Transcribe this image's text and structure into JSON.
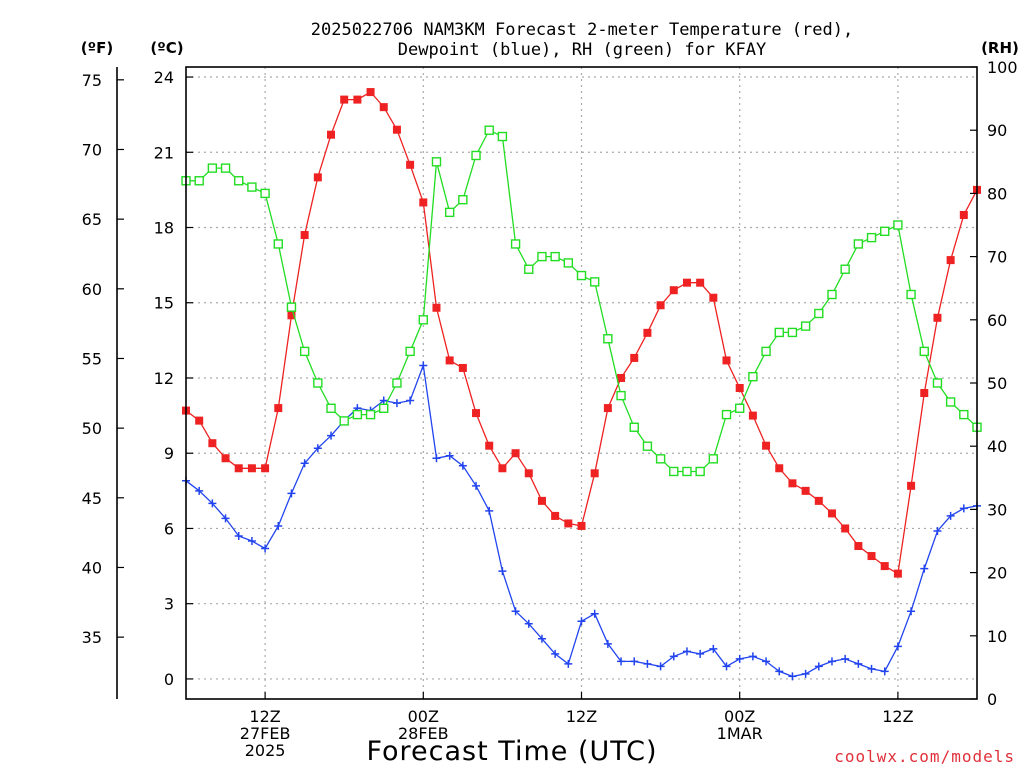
{
  "chart_data": {
    "type": "line",
    "title_line1": "2025022706 NAM3KM Forecast 2-meter Temperature (red),",
    "title_line2": "Dewpoint (blue), RH (green) for KFAY",
    "xlabel": "Forecast Time (UTC)",
    "credit": "coolwx.com/models",
    "units": {
      "fahrenheit": "(ºF)",
      "celsius": "(ºC)",
      "rh": "(RH)"
    },
    "x_range_hours": [
      7,
      67
    ],
    "celsius_axis": {
      "range": [
        -0.8,
        24.4
      ],
      "ticks": [
        0,
        3,
        6,
        9,
        12,
        15,
        18,
        21,
        24
      ]
    },
    "fahrenheit_axis": {
      "ticks": [
        35,
        40,
        45,
        50,
        55,
        60,
        65,
        70,
        75
      ]
    },
    "rh_axis": {
      "range": [
        0,
        100
      ],
      "ticks": [
        0,
        10,
        20,
        30,
        40,
        50,
        60,
        70,
        80,
        90,
        100
      ]
    },
    "x_ticks": [
      {
        "hour": 13,
        "lines": [
          "12Z",
          "27FEB",
          "2025"
        ]
      },
      {
        "hour": 25,
        "lines": [
          "00Z",
          "28FEB"
        ]
      },
      {
        "hour": 37,
        "lines": [
          "12Z"
        ]
      },
      {
        "hour": 49,
        "lines": [
          "00Z",
          "1MAR"
        ]
      },
      {
        "hour": 61,
        "lines": [
          "12Z"
        ]
      }
    ],
    "grid": true,
    "series": [
      {
        "name": "Temperature",
        "color": "#ee2222",
        "marker": "filled-square",
        "axis": "celsius",
        "x": [
          7,
          8,
          9,
          10,
          11,
          12,
          13,
          14,
          15,
          16,
          17,
          18,
          19,
          20,
          21,
          22,
          23,
          24,
          25,
          26,
          27,
          28,
          29,
          30,
          31,
          32,
          33,
          34,
          35,
          36,
          37,
          38,
          39,
          40,
          41,
          42,
          43,
          44,
          45,
          46,
          47,
          48,
          49,
          50,
          51,
          52,
          53,
          54,
          55,
          56,
          57,
          58,
          59,
          60,
          61,
          62,
          63,
          64,
          65,
          66,
          67
        ],
        "values": [
          10.7,
          10.3,
          9.4,
          8.8,
          8.4,
          8.4,
          8.4,
          10.8,
          14.5,
          17.7,
          20.0,
          21.7,
          23.1,
          23.1,
          23.4,
          22.8,
          21.9,
          20.5,
          19.0,
          14.8,
          12.7,
          12.4,
          10.6,
          9.3,
          8.4,
          9.0,
          8.2,
          7.1,
          6.5,
          6.2,
          6.1,
          8.2,
          10.8,
          12.0,
          12.8,
          13.8,
          14.9,
          15.5,
          15.8,
          15.8,
          15.2,
          12.7,
          11.6,
          10.5,
          9.3,
          8.4,
          7.8,
          7.5,
          7.1,
          6.6,
          6.0,
          5.3,
          4.9,
          4.5,
          4.2,
          7.7,
          11.4,
          14.4,
          16.7,
          18.5,
          19.5
        ]
      },
      {
        "name": "Dewpoint",
        "color": "#2244ee",
        "marker": "plus",
        "axis": "celsius",
        "x": [
          7,
          8,
          9,
          10,
          11,
          12,
          13,
          14,
          15,
          16,
          17,
          18,
          19,
          20,
          21,
          22,
          23,
          24,
          25,
          26,
          27,
          28,
          29,
          30,
          31,
          32,
          33,
          34,
          35,
          36,
          37,
          38,
          39,
          40,
          41,
          42,
          43,
          44,
          45,
          46,
          47,
          48,
          49,
          50,
          51,
          52,
          53,
          54,
          55,
          56,
          57,
          58,
          59,
          60,
          61,
          62,
          63,
          64,
          65,
          66,
          67
        ],
        "values": [
          7.9,
          7.5,
          7.0,
          6.4,
          5.7,
          5.5,
          5.2,
          6.1,
          7.4,
          8.6,
          9.2,
          9.7,
          10.3,
          10.8,
          10.7,
          11.1,
          11.0,
          11.1,
          12.5,
          8.8,
          8.9,
          8.5,
          7.7,
          6.7,
          4.3,
          2.7,
          2.2,
          1.6,
          1.0,
          0.6,
          2.3,
          2.6,
          1.4,
          0.7,
          0.7,
          0.6,
          0.5,
          0.9,
          1.1,
          1.0,
          1.2,
          0.5,
          0.8,
          0.9,
          0.7,
          0.3,
          0.1,
          0.2,
          0.5,
          0.7,
          0.8,
          0.6,
          0.4,
          0.3,
          1.3,
          2.7,
          4.4,
          5.9,
          6.5,
          6.8,
          6.9
        ]
      },
      {
        "name": "RH",
        "color": "#22dd22",
        "marker": "open-square",
        "axis": "rh",
        "x": [
          7,
          8,
          9,
          10,
          11,
          12,
          13,
          14,
          15,
          16,
          17,
          18,
          19,
          20,
          21,
          22,
          23,
          24,
          25,
          26,
          27,
          28,
          29,
          30,
          31,
          32,
          33,
          34,
          35,
          36,
          37,
          38,
          39,
          40,
          41,
          42,
          43,
          44,
          45,
          46,
          47,
          48,
          49,
          50,
          51,
          52,
          53,
          54,
          55,
          56,
          57,
          58,
          59,
          60,
          61,
          62,
          63,
          64,
          65,
          66,
          67
        ],
        "values": [
          82,
          82,
          84,
          84,
          82,
          81,
          80,
          72,
          62,
          55,
          50,
          46,
          44,
          45,
          45,
          46,
          50,
          55,
          60,
          85,
          77,
          79,
          86,
          90,
          89,
          72,
          68,
          70,
          70,
          69,
          67,
          66,
          57,
          48,
          43,
          40,
          38,
          36,
          36,
          36,
          38,
          45,
          46,
          51,
          55,
          58,
          58,
          59,
          61,
          64,
          68,
          72,
          73,
          74,
          75,
          64,
          55,
          50,
          47,
          45,
          43
        ]
      }
    ]
  }
}
